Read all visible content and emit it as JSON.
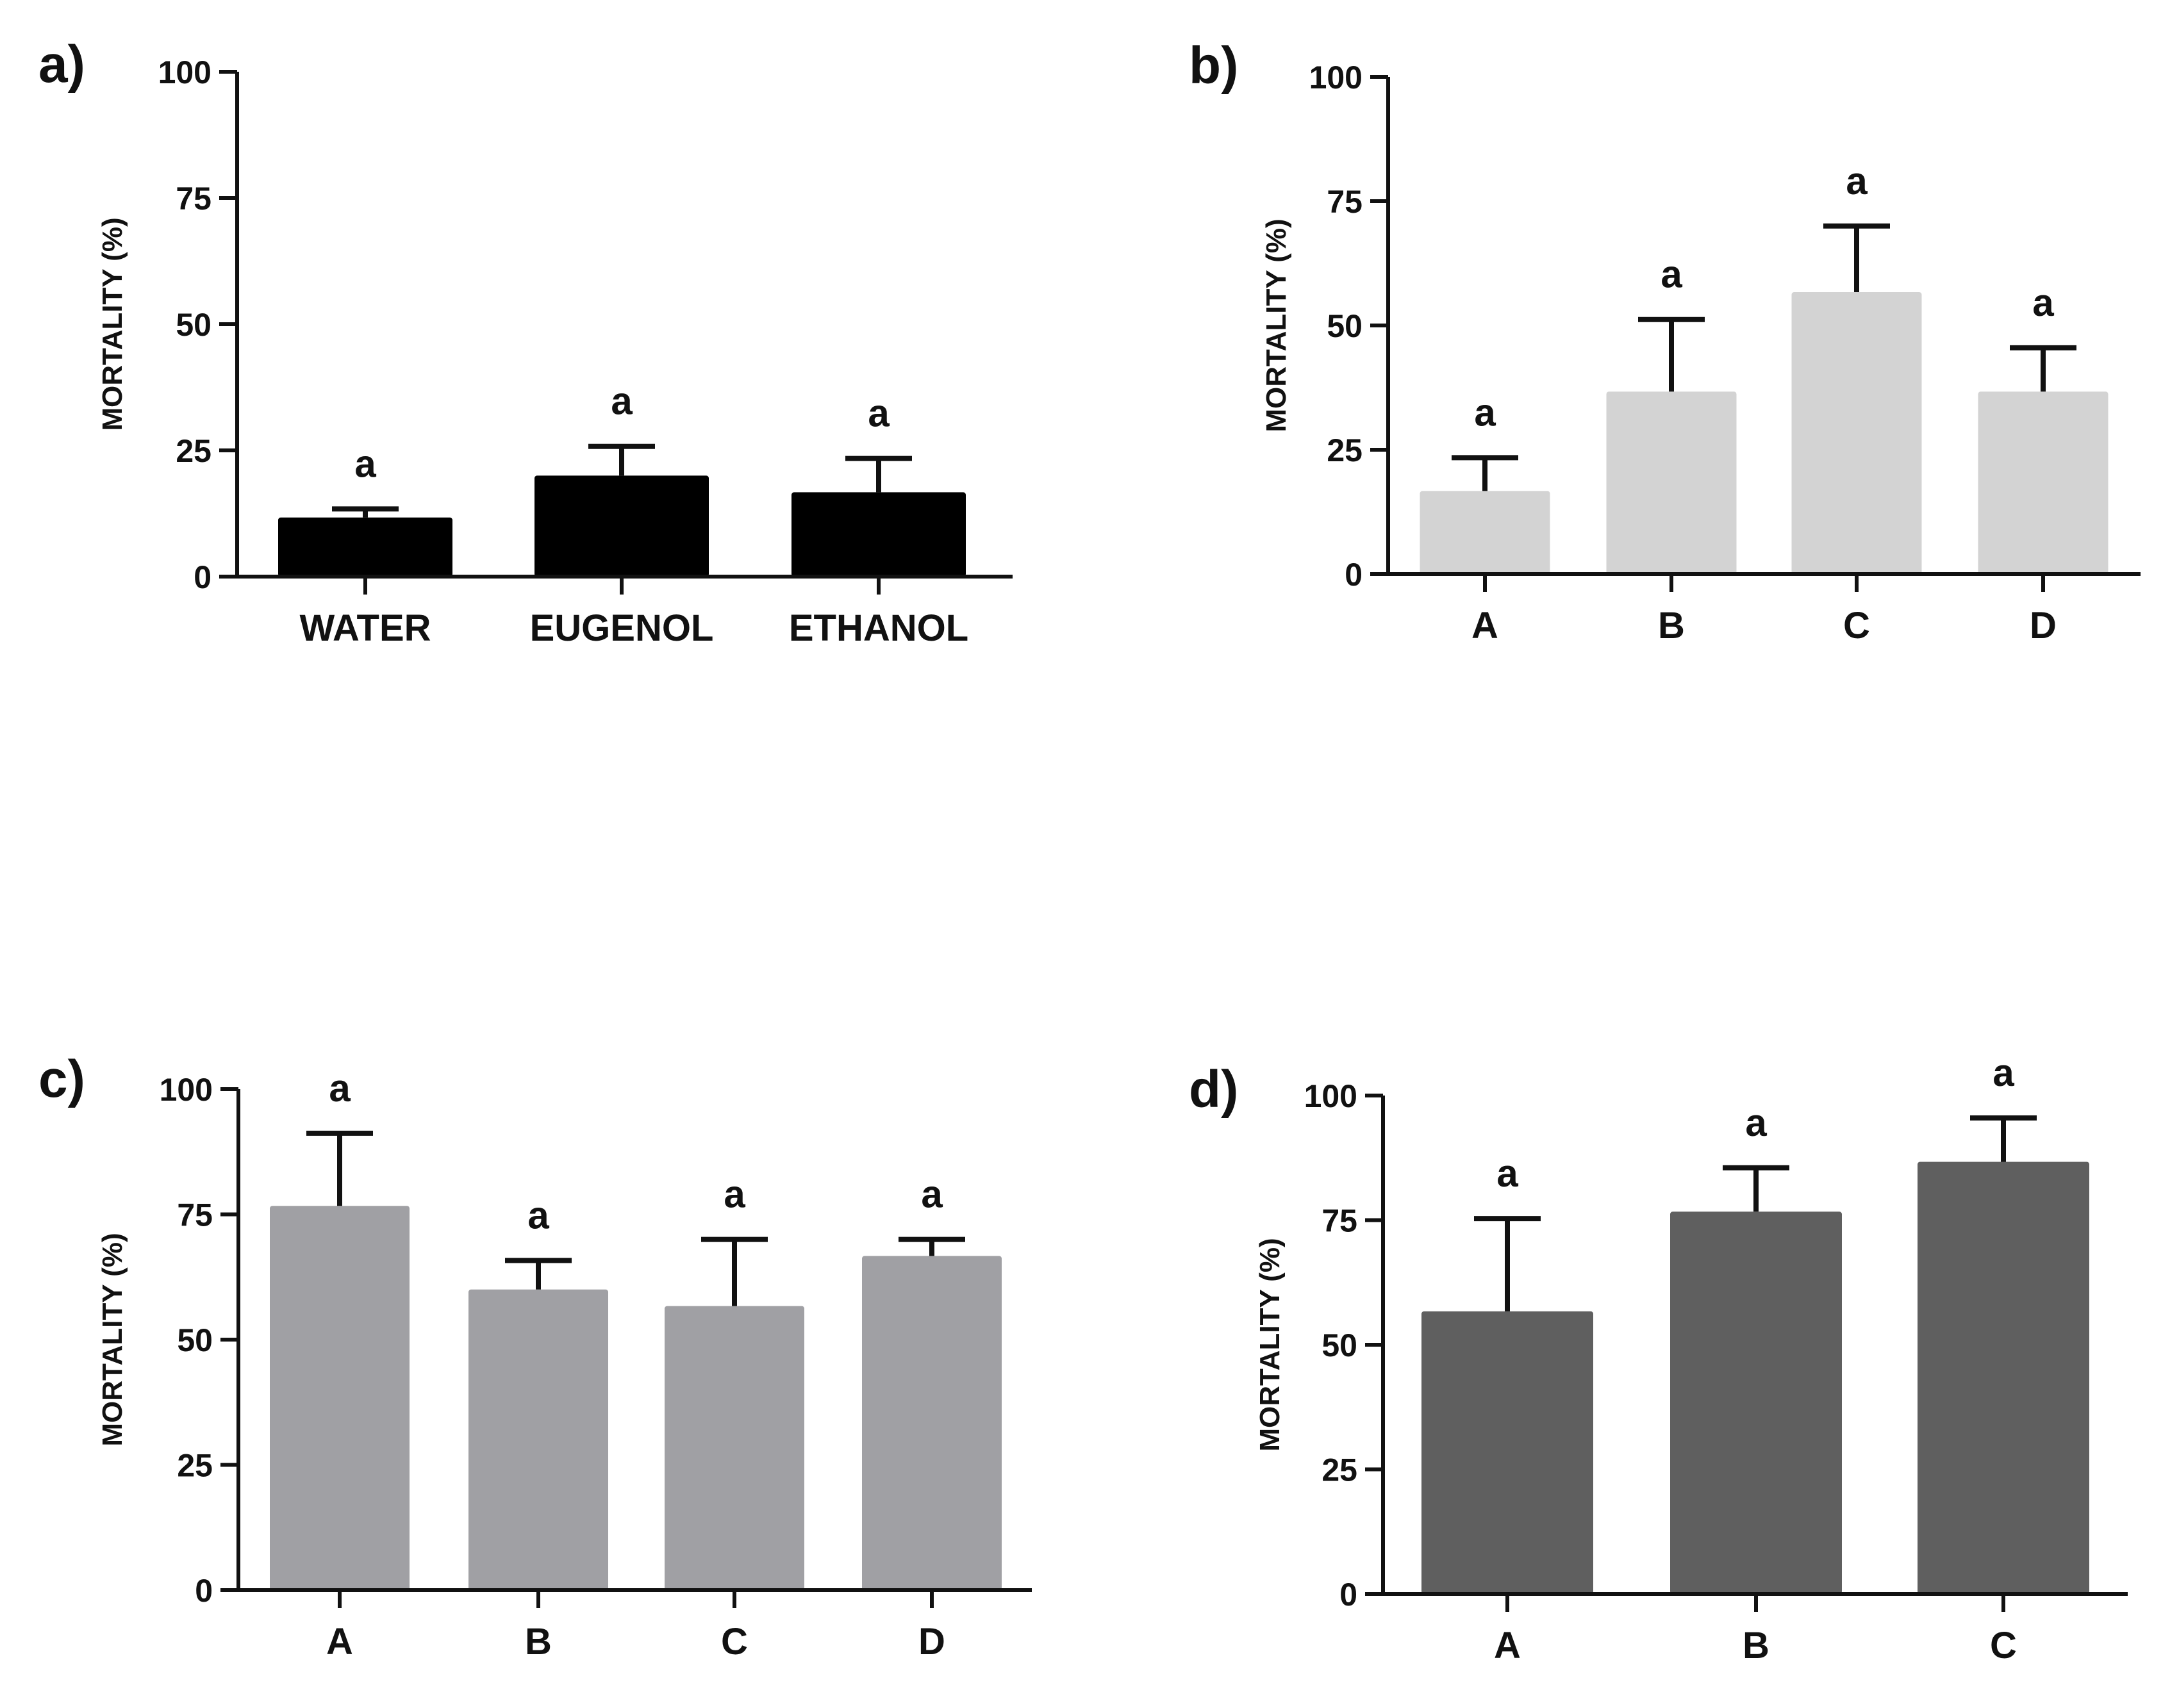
{
  "chart_data": [
    {
      "type": "bar",
      "panel": "a)",
      "categories": [
        "WATER",
        "EUGENOL",
        "ETHANOL"
      ],
      "values": [
        11.7,
        20,
        16.7
      ],
      "error": [
        1.7,
        5.8,
        6.7
      ],
      "significance": [
        "a",
        "a",
        "a"
      ],
      "ylabel": "MORTALITY (%)",
      "ylim": [
        0,
        100
      ],
      "yticks": [
        0,
        25,
        50,
        75,
        100
      ],
      "bar_color": "#000000"
    },
    {
      "type": "bar",
      "panel": "b)",
      "categories": [
        "A",
        "B",
        "C",
        "D"
      ],
      "values": [
        16.7,
        36.7,
        56.7,
        36.7
      ],
      "error": [
        6.7,
        14.5,
        13.3,
        8.8
      ],
      "significance": [
        "a",
        "a",
        "a",
        "a"
      ],
      "ylabel": "MORTALITY (%)",
      "ylim": [
        0,
        100
      ],
      "yticks": [
        0,
        25,
        50,
        75,
        100
      ],
      "bar_color": "#d3d3d3"
    },
    {
      "type": "bar",
      "panel": "c)",
      "categories": [
        "A",
        "B",
        "C",
        "D"
      ],
      "values": [
        76.7,
        60,
        56.7,
        66.7
      ],
      "error": [
        14.5,
        5.8,
        13.3,
        3.3
      ],
      "significance": [
        "a",
        "a",
        "a",
        "a"
      ],
      "ylabel": "MORTALITY (%)",
      "ylim": [
        0,
        100
      ],
      "yticks": [
        0,
        25,
        50,
        75,
        100
      ],
      "bar_color": "#a0a0a4"
    },
    {
      "type": "bar",
      "panel": "d)",
      "categories": [
        "A",
        "B",
        "C"
      ],
      "values": [
        56.7,
        76.7,
        86.7
      ],
      "error": [
        18.6,
        8.8,
        8.8
      ],
      "significance": [
        "a",
        "a",
        "a"
      ],
      "ylabel": "MORTALITY (%)",
      "ylim": [
        0,
        100
      ],
      "yticks": [
        0,
        25,
        50,
        75,
        100
      ],
      "bar_color": "#5f5f5f"
    }
  ]
}
